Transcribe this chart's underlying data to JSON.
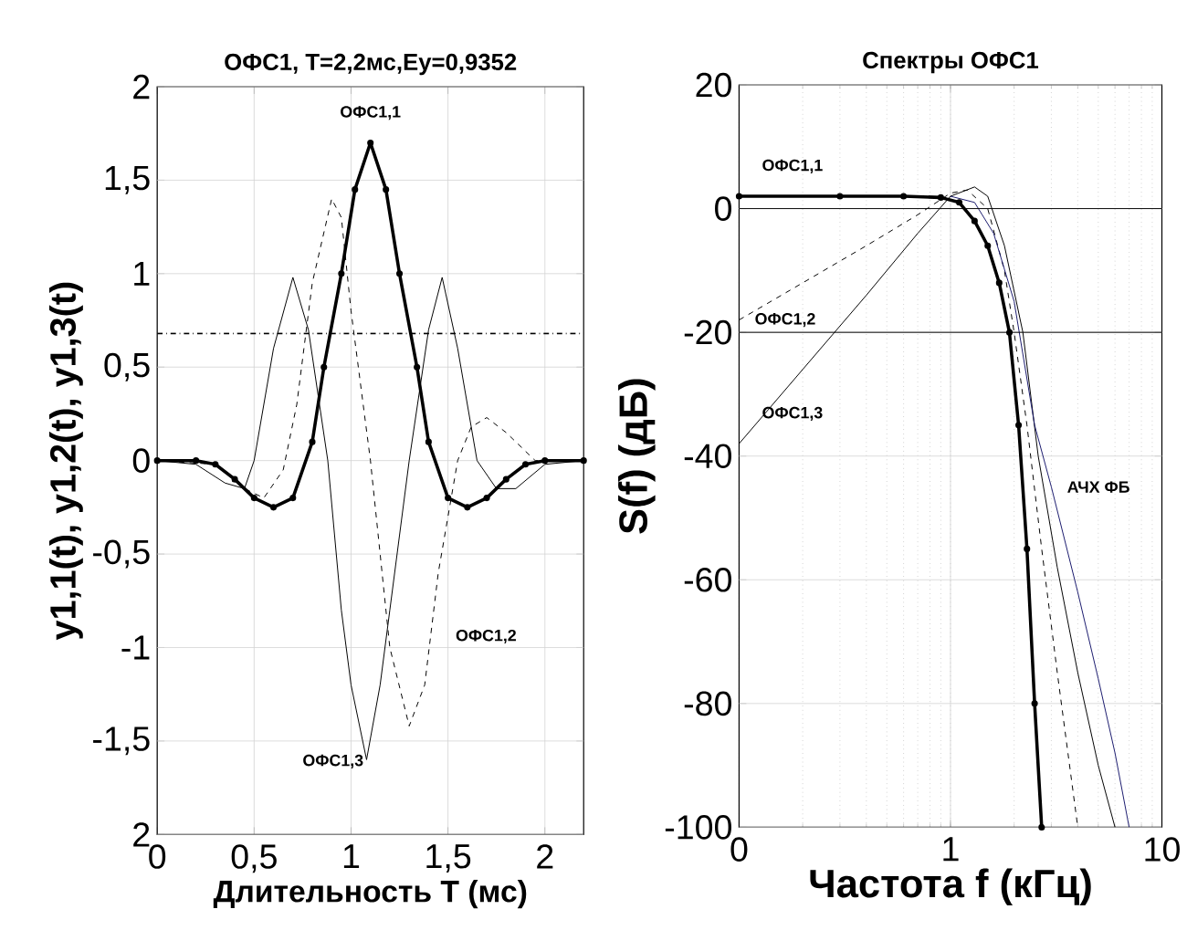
{
  "chart_data": [
    {
      "type": "line",
      "title": "ОФС1, T=2,2мс,Ey=0,9352",
      "xlabel": "Длительность T (мс)",
      "ylabel": "y1,1(t), y1,2(t), y1,3(t)",
      "xlim": [
        0,
        2.2
      ],
      "ylim": [
        -2,
        2
      ],
      "xticks": [
        0,
        {
          "value": 0.5,
          "label": "0,5"
        },
        1,
        {
          "value": 1.5,
          "label": "1,5"
        },
        2
      ],
      "yticks": [
        {
          "value": -2,
          "label": "2"
        },
        {
          "value": -1.5,
          "label": "-1,5"
        },
        -1,
        {
          "value": -0.5,
          "label": "-0,5"
        },
        0,
        {
          "value": 0.5,
          "label": "0,5"
        },
        1,
        {
          "value": 1.5,
          "label": "1,5"
        },
        2
      ],
      "grid": true,
      "series": [
        {
          "name": "ОФС1,1",
          "color": "#000000",
          "marker": "circle",
          "line_style": "solid",
          "x": [
            0,
            0.2,
            0.3,
            0.4,
            0.5,
            0.6,
            0.7,
            0.8,
            0.86,
            0.95,
            1.02,
            1.1,
            1.18,
            1.25,
            1.34,
            1.4,
            1.5,
            1.6,
            1.7,
            1.8,
            1.9,
            2.0,
            2.2
          ],
          "values": [
            0,
            0,
            -0.02,
            -0.1,
            -0.2,
            -0.25,
            -0.2,
            0.1,
            0.5,
            1.0,
            1.45,
            1.7,
            1.45,
            1.0,
            0.5,
            0.1,
            -0.2,
            -0.25,
            -0.2,
            -0.1,
            -0.02,
            0,
            0
          ]
        },
        {
          "name": "ОФС1,2",
          "color": "#000000",
          "line_style": "dashed",
          "x": [
            0,
            0.3,
            0.45,
            0.55,
            0.65,
            0.72,
            0.8,
            0.9,
            0.95,
            1.0,
            1.1,
            1.2,
            1.3,
            1.38,
            1.45,
            1.55,
            1.62,
            1.7,
            1.8,
            1.95,
            2.2
          ],
          "values": [
            0,
            -0.02,
            -0.15,
            -0.2,
            -0.05,
            0.3,
            0.95,
            1.4,
            1.3,
            0.8,
            0,
            -1.0,
            -1.42,
            -1.2,
            -0.6,
            0,
            0.18,
            0.23,
            0.15,
            0,
            0
          ]
        },
        {
          "name": "ОФС1,3",
          "color": "#000000",
          "line_style": "solid",
          "x": [
            0,
            0.2,
            0.35,
            0.45,
            0.5,
            0.6,
            0.7,
            0.78,
            0.88,
            0.95,
            1.0,
            1.08,
            1.15,
            1.2,
            1.3,
            1.4,
            1.47,
            1.55,
            1.65,
            1.75,
            1.85,
            2.0,
            2.2
          ],
          "values": [
            0,
            -0.02,
            -0.12,
            -0.15,
            0,
            0.6,
            0.98,
            0.7,
            0,
            -0.8,
            -1.2,
            -1.6,
            -1.2,
            -0.8,
            0,
            0.7,
            0.98,
            0.6,
            0,
            -0.15,
            -0.15,
            -0.02,
            0
          ]
        }
      ],
      "ref_lines": [
        {
          "axis": "y",
          "value": 0.68,
          "line_style": "dashdot",
          "color": "#000000"
        }
      ]
    },
    {
      "type": "line",
      "title": "Спектры ОФС1",
      "xlabel": "Частота f (кГц)",
      "ylabel": "S(f) (дБ)",
      "log": "x",
      "xlim": [
        0.1,
        10
      ],
      "ylim": [
        -100,
        20
      ],
      "xticks": [
        {
          "value": 0.1,
          "label": "0"
        },
        1,
        10
      ],
      "yticks": [
        -100,
        -80,
        -60,
        -40,
        -20,
        0,
        20
      ],
      "grid": true,
      "series": [
        {
          "name": "ОФС1,1",
          "color": "#000000",
          "marker": "circle",
          "line_style": "solid",
          "x": [
            0.1,
            0.3,
            0.6,
            0.9,
            1.1,
            1.3,
            1.5,
            1.7,
            1.9,
            2.1,
            2.3,
            2.5,
            2.7
          ],
          "values": [
            2,
            2,
            2,
            1.8,
            1,
            -2,
            -6,
            -12,
            -20,
            -35,
            -55,
            -80,
            -100
          ]
        },
        {
          "name": "ОФС1,2",
          "color": "#000000",
          "line_style": "dashed",
          "x": [
            0.1,
            0.2,
            0.4,
            0.7,
            1.0,
            1.2,
            1.5,
            1.8,
            2.0,
            2.3,
            2.7,
            3.2,
            4.0
          ],
          "values": [
            -18,
            -12,
            -6,
            -1,
            2.5,
            3,
            0,
            -10,
            -20,
            -35,
            -55,
            -75,
            -100
          ]
        },
        {
          "name": "ОФС1,3",
          "color": "#000000",
          "line_style": "solid",
          "x": [
            0.1,
            0.2,
            0.4,
            0.7,
            1.0,
            1.3,
            1.5,
            1.8,
            2.2,
            2.6,
            3.2,
            4.0,
            5.0,
            6.0
          ],
          "values": [
            -38,
            -26,
            -14,
            -4,
            2,
            3.5,
            2,
            -6,
            -20,
            -40,
            -58,
            -75,
            -90,
            -100
          ]
        },
        {
          "name": "АЧХ ФБ",
          "color": "#1a1a6e",
          "line_style": "solid",
          "x": [
            1.0,
            1.3,
            1.6,
            2.0,
            2.5,
            3.0,
            4.0,
            5.0,
            6.0,
            7.0
          ],
          "values": [
            2,
            1,
            -4,
            -15,
            -35,
            -45,
            -62,
            -76,
            -88,
            -100
          ]
        },
        {
          "color": "#000000",
          "line_style": "solid",
          "x": [
            0.1,
            10
          ],
          "values": [
            0,
            0
          ]
        },
        {
          "color": "#000000",
          "line_style": "solid",
          "x": [
            0.1,
            10
          ],
          "values": [
            -20,
            -20
          ]
        }
      ]
    }
  ]
}
